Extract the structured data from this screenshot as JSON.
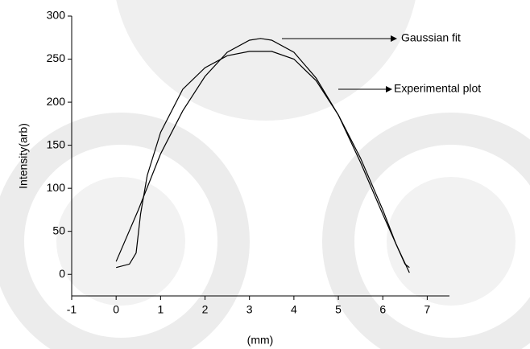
{
  "chart_data": {
    "type": "line",
    "xlabel": "(mm)",
    "ylabel": "Intensity(arb)",
    "annotations": [
      "Gaussian fit",
      "Experimental plot"
    ],
    "xlim": [
      -1,
      7.5
    ],
    "xticks": [
      -1,
      0,
      1,
      2,
      3,
      4,
      5,
      6,
      7
    ],
    "ylim": [
      -25,
      300
    ],
    "yticks": [
      0,
      50,
      100,
      150,
      200,
      250,
      300
    ],
    "series": [
      {
        "name": "Gaussian fit",
        "color": "#000000",
        "x": [
          0,
          0.5,
          1,
          1.5,
          2,
          2.5,
          3,
          3.25,
          3.5,
          4,
          4.5,
          5,
          5.5,
          6,
          6.3,
          6.6
        ],
        "values": [
          15,
          75,
          140,
          190,
          230,
          258,
          272,
          274,
          272,
          258,
          228,
          185,
          130,
          70,
          35,
          2
        ]
      },
      {
        "name": "Experimental plot",
        "color": "#000000",
        "x": [
          0,
          0.3,
          0.45,
          0.55,
          0.7,
          1,
          1.5,
          2,
          2.5,
          3,
          3.5,
          4,
          4.5,
          5,
          5.5,
          6,
          6.3,
          6.5,
          6.6
        ],
        "values": [
          8,
          12,
          25,
          70,
          115,
          165,
          215,
          240,
          254,
          259,
          259,
          250,
          225,
          185,
          135,
          75,
          35,
          12,
          8
        ]
      }
    ]
  }
}
